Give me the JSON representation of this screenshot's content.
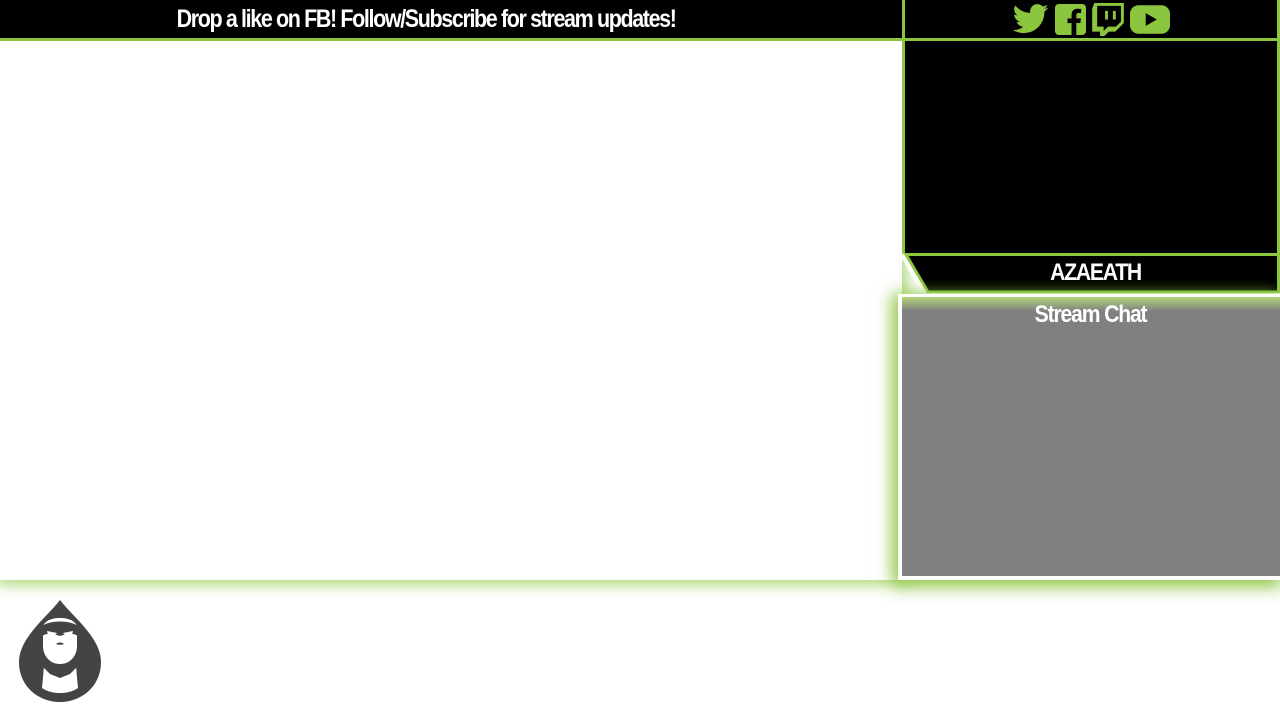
{
  "ticker": {
    "message": "Drop a like on FB! Follow/Subscribe for stream updates!"
  },
  "social": {
    "icons": [
      "twitter-icon",
      "facebook-icon",
      "twitch-icon",
      "youtube-icon"
    ],
    "color": "#8cc63f"
  },
  "nameplate": {
    "name": "AZAEATH"
  },
  "chat": {
    "title": "Stream Chat"
  },
  "colors": {
    "accent": "#8cc63f",
    "bar_background": "#000000",
    "chat_background": "#808080",
    "logo": "#444444"
  }
}
